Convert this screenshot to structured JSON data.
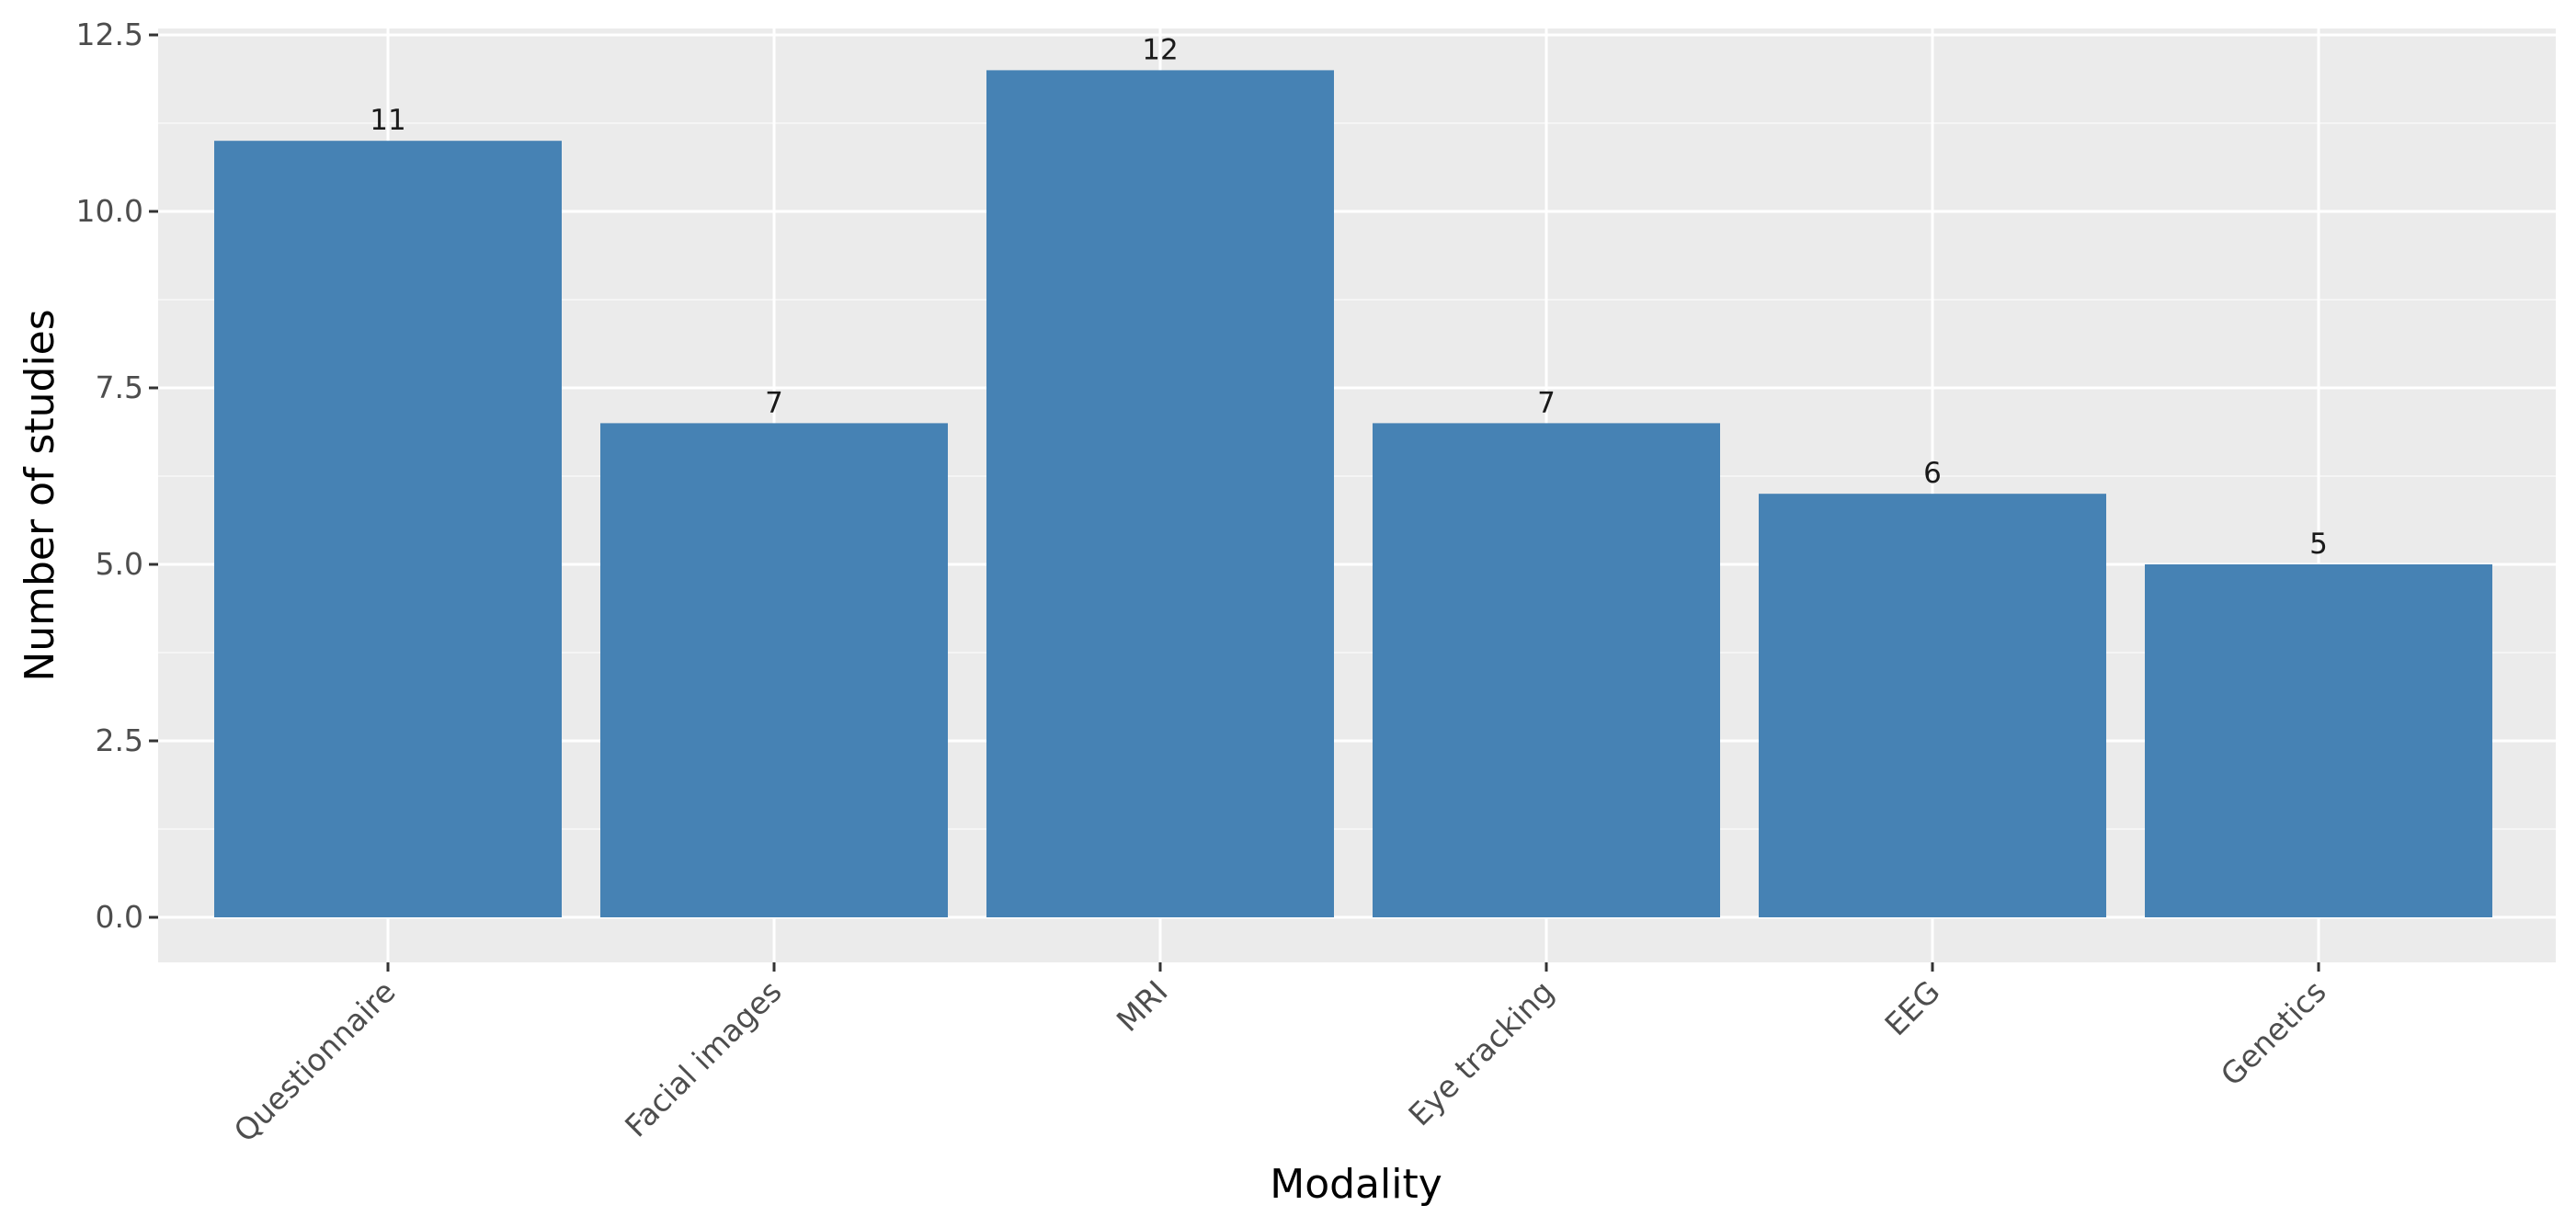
{
  "chart_data": {
    "type": "bar",
    "categories": [
      "Questionnaire",
      "Facial images",
      "MRI",
      "Eye tracking",
      "EEG",
      "Genetics"
    ],
    "values": [
      11,
      7,
      12,
      7,
      6,
      5
    ],
    "data_labels": [
      "11",
      "7",
      "12",
      "7",
      "6",
      "5"
    ],
    "title": "",
    "xlabel": "Modality",
    "ylabel": "Number of studies",
    "ylim": [
      0,
      12.5
    ],
    "yticks": [
      0.0,
      2.5,
      5.0,
      7.5,
      10.0,
      12.5
    ],
    "ytick_labels": [
      "0.0",
      "2.5",
      "5.0",
      "7.5",
      "10.0",
      "12.5"
    ],
    "grid": true,
    "legend": "none",
    "colors": {
      "bar": "#4682b4",
      "panel_background": "#ebebeb",
      "grid_major": "#ffffff",
      "grid_minor": "#f5f5f5"
    }
  }
}
